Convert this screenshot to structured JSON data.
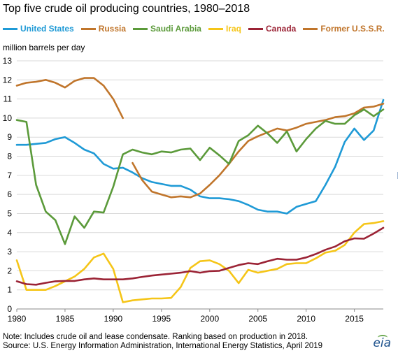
{
  "title": "Top five crude oil producing countries, 1980–2018",
  "y_unit_label": "million barrels per day",
  "note_line1": "Note: Includes crude oil and lease condensate. Ranking based on production in 2018.",
  "note_line2": "Source: U.S. Energy Information Administration, International Energy Statistics, April 2019",
  "logo_text": "eia",
  "chart_data": {
    "type": "line",
    "title": "Top five crude oil producing countries, 1980–2018",
    "ylabel": "million barrels per day",
    "xlabel": "",
    "xlim": [
      1980,
      2018
    ],
    "ylim": [
      0,
      13
    ],
    "x_ticks": [
      1980,
      1985,
      1990,
      1995,
      2000,
      2005,
      2010,
      2015
    ],
    "y_ticks": [
      0,
      1,
      2,
      3,
      4,
      5,
      6,
      7,
      8,
      9,
      10,
      11,
      12,
      13
    ],
    "grid": "horizontal",
    "legend_position": "top",
    "series": [
      {
        "name": "United States",
        "color": "#1f9ad6",
        "points": [
          [
            1980,
            8.6
          ],
          [
            1981,
            8.6
          ],
          [
            1982,
            8.65
          ],
          [
            1983,
            8.7
          ],
          [
            1984,
            8.9
          ],
          [
            1985,
            9.0
          ],
          [
            1986,
            8.7
          ],
          [
            1987,
            8.35
          ],
          [
            1988,
            8.15
          ],
          [
            1989,
            7.6
          ],
          [
            1990,
            7.35
          ],
          [
            1991,
            7.4
          ],
          [
            1992,
            7.15
          ],
          [
            1993,
            6.85
          ],
          [
            1994,
            6.65
          ],
          [
            1995,
            6.55
          ],
          [
            1996,
            6.45
          ],
          [
            1997,
            6.45
          ],
          [
            1998,
            6.25
          ],
          [
            1999,
            5.9
          ],
          [
            2000,
            5.8
          ],
          [
            2001,
            5.8
          ],
          [
            2002,
            5.75
          ],
          [
            2003,
            5.65
          ],
          [
            2004,
            5.45
          ],
          [
            2005,
            5.2
          ],
          [
            2006,
            5.1
          ],
          [
            2007,
            5.1
          ],
          [
            2008,
            5.0
          ],
          [
            2009,
            5.35
          ],
          [
            2010,
            5.5
          ],
          [
            2011,
            5.65
          ],
          [
            2012,
            6.5
          ],
          [
            2013,
            7.45
          ],
          [
            2014,
            8.75
          ],
          [
            2015,
            9.45
          ],
          [
            2016,
            8.85
          ],
          [
            2017,
            9.35
          ],
          [
            2018,
            10.95
          ]
        ]
      },
      {
        "name": "Russia",
        "color": "#c0752b",
        "points": [
          [
            1992,
            7.65
          ],
          [
            1993,
            6.75
          ],
          [
            1994,
            6.15
          ],
          [
            1995,
            6.0
          ],
          [
            1996,
            5.85
          ],
          [
            1997,
            5.9
          ],
          [
            1998,
            5.85
          ],
          [
            1999,
            6.05
          ],
          [
            2000,
            6.5
          ],
          [
            2001,
            7.0
          ],
          [
            2002,
            7.6
          ],
          [
            2003,
            8.25
          ],
          [
            2004,
            8.8
          ],
          [
            2005,
            9.05
          ],
          [
            2006,
            9.25
          ],
          [
            2007,
            9.45
          ],
          [
            2008,
            9.35
          ],
          [
            2009,
            9.5
          ],
          [
            2010,
            9.7
          ],
          [
            2011,
            9.8
          ],
          [
            2012,
            9.9
          ],
          [
            2013,
            10.05
          ],
          [
            2014,
            10.1
          ],
          [
            2015,
            10.25
          ],
          [
            2016,
            10.55
          ],
          [
            2017,
            10.6
          ],
          [
            2018,
            10.75
          ]
        ]
      },
      {
        "name": "Saudi Arabia",
        "color": "#5b9a3a",
        "points": [
          [
            1980,
            9.9
          ],
          [
            1981,
            9.8
          ],
          [
            1982,
            6.5
          ],
          [
            1983,
            5.1
          ],
          [
            1984,
            4.65
          ],
          [
            1985,
            3.4
          ],
          [
            1986,
            4.85
          ],
          [
            1987,
            4.25
          ],
          [
            1988,
            5.1
          ],
          [
            1989,
            5.05
          ],
          [
            1990,
            6.4
          ],
          [
            1991,
            8.1
          ],
          [
            1992,
            8.35
          ],
          [
            1993,
            8.2
          ],
          [
            1994,
            8.1
          ],
          [
            1995,
            8.25
          ],
          [
            1996,
            8.2
          ],
          [
            1997,
            8.35
          ],
          [
            1998,
            8.4
          ],
          [
            1999,
            7.8
          ],
          [
            2000,
            8.45
          ],
          [
            2001,
            8.05
          ],
          [
            2002,
            7.6
          ],
          [
            2003,
            8.8
          ],
          [
            2004,
            9.1
          ],
          [
            2005,
            9.6
          ],
          [
            2006,
            9.2
          ],
          [
            2007,
            8.7
          ],
          [
            2008,
            9.3
          ],
          [
            2009,
            8.25
          ],
          [
            2010,
            8.9
          ],
          [
            2011,
            9.45
          ],
          [
            2012,
            9.85
          ],
          [
            2013,
            9.7
          ],
          [
            2014,
            9.7
          ],
          [
            2015,
            10.15
          ],
          [
            2016,
            10.45
          ],
          [
            2017,
            10.1
          ],
          [
            2018,
            10.45
          ]
        ]
      },
      {
        "name": "Iraq",
        "color": "#f5c518",
        "points": [
          [
            1980,
            2.55
          ],
          [
            1981,
            1.0
          ],
          [
            1982,
            1.0
          ],
          [
            1983,
            1.0
          ],
          [
            1984,
            1.2
          ],
          [
            1985,
            1.45
          ],
          [
            1986,
            1.7
          ],
          [
            1987,
            2.1
          ],
          [
            1988,
            2.7
          ],
          [
            1989,
            2.9
          ],
          [
            1990,
            2.1
          ],
          [
            1991,
            0.35
          ],
          [
            1992,
            0.45
          ],
          [
            1993,
            0.5
          ],
          [
            1994,
            0.55
          ],
          [
            1995,
            0.55
          ],
          [
            1996,
            0.58
          ],
          [
            1997,
            1.15
          ],
          [
            1998,
            2.15
          ],
          [
            1999,
            2.5
          ],
          [
            2000,
            2.55
          ],
          [
            2001,
            2.35
          ],
          [
            2002,
            2.0
          ],
          [
            2003,
            1.35
          ],
          [
            2004,
            2.05
          ],
          [
            2005,
            1.9
          ],
          [
            2006,
            2.0
          ],
          [
            2007,
            2.1
          ],
          [
            2008,
            2.35
          ],
          [
            2009,
            2.4
          ],
          [
            2010,
            2.4
          ],
          [
            2011,
            2.65
          ],
          [
            2012,
            2.95
          ],
          [
            2013,
            3.05
          ],
          [
            2014,
            3.35
          ],
          [
            2015,
            4.0
          ],
          [
            2016,
            4.45
          ],
          [
            2017,
            4.5
          ],
          [
            2018,
            4.6
          ]
        ]
      },
      {
        "name": "Canada",
        "color": "#9b2335",
        "points": [
          [
            1980,
            1.45
          ],
          [
            1981,
            1.3
          ],
          [
            1982,
            1.27
          ],
          [
            1983,
            1.37
          ],
          [
            1984,
            1.45
          ],
          [
            1985,
            1.47
          ],
          [
            1986,
            1.47
          ],
          [
            1987,
            1.55
          ],
          [
            1988,
            1.6
          ],
          [
            1989,
            1.55
          ],
          [
            1990,
            1.55
          ],
          [
            1991,
            1.55
          ],
          [
            1992,
            1.6
          ],
          [
            1993,
            1.68
          ],
          [
            1994,
            1.75
          ],
          [
            1995,
            1.8
          ],
          [
            1996,
            1.85
          ],
          [
            1997,
            1.9
          ],
          [
            1998,
            1.98
          ],
          [
            1999,
            1.9
          ],
          [
            2000,
            1.98
          ],
          [
            2001,
            2.0
          ],
          [
            2002,
            2.15
          ],
          [
            2003,
            2.3
          ],
          [
            2004,
            2.4
          ],
          [
            2005,
            2.35
          ],
          [
            2006,
            2.5
          ],
          [
            2007,
            2.63
          ],
          [
            2008,
            2.58
          ],
          [
            2009,
            2.58
          ],
          [
            2010,
            2.7
          ],
          [
            2011,
            2.88
          ],
          [
            2012,
            3.1
          ],
          [
            2013,
            3.27
          ],
          [
            2014,
            3.55
          ],
          [
            2015,
            3.7
          ],
          [
            2016,
            3.68
          ],
          [
            2017,
            3.95
          ],
          [
            2018,
            4.25
          ]
        ]
      },
      {
        "name": "Former U.S.S.R.",
        "color": "#c0752b",
        "points": [
          [
            1980,
            11.7
          ],
          [
            1981,
            11.85
          ],
          [
            1982,
            11.9
          ],
          [
            1983,
            12.0
          ],
          [
            1984,
            11.85
          ],
          [
            1985,
            11.6
          ],
          [
            1986,
            11.95
          ],
          [
            1987,
            12.1
          ],
          [
            1988,
            12.1
          ],
          [
            1989,
            11.7
          ],
          [
            1990,
            11.0
          ],
          [
            1991,
            10.0
          ]
        ]
      }
    ]
  }
}
